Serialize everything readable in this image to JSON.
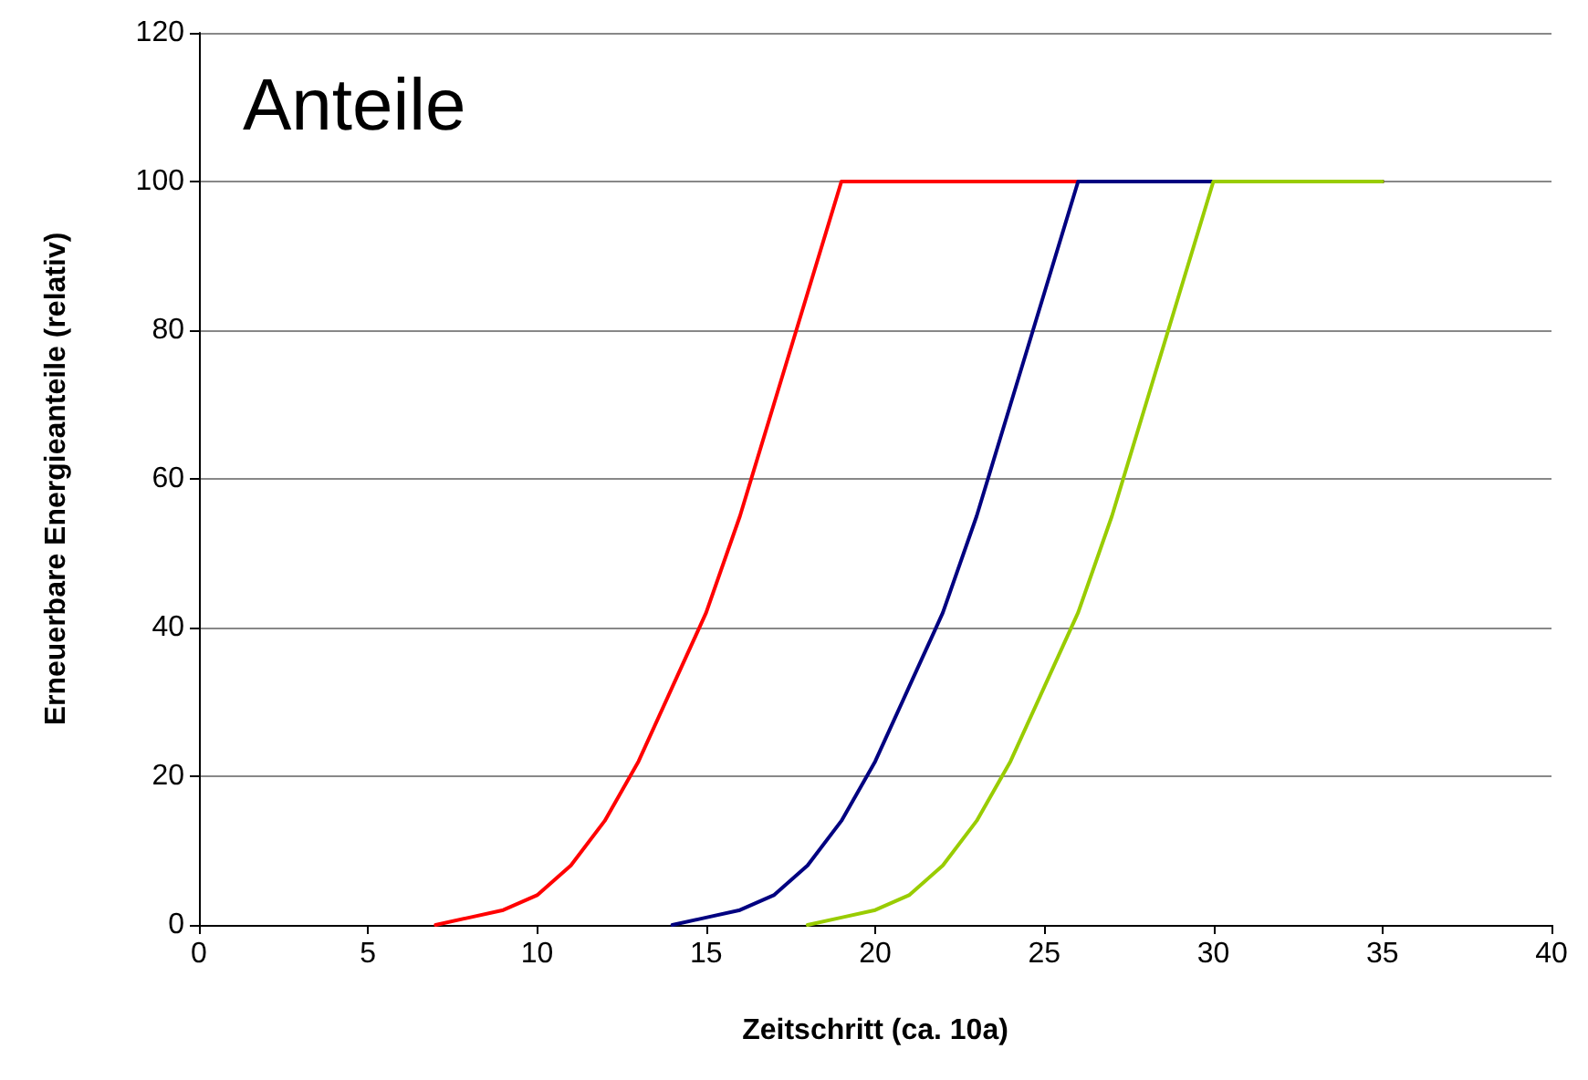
{
  "chart_data": {
    "type": "line",
    "title": "Anteile",
    "xlabel": "Zeitschritt (ca. 10a)",
    "ylabel": "Erneuerbare Energieanteile (relativ)",
    "xlim": [
      0,
      40
    ],
    "xticks": [
      0,
      5,
      10,
      15,
      20,
      25,
      30,
      35,
      40
    ],
    "ylim": [
      0,
      120
    ],
    "yticks": [
      0,
      20,
      40,
      60,
      80,
      100,
      120
    ],
    "grid": "y",
    "marker": "none",
    "line_style": "solid",
    "series": [
      {
        "color": "#ff0000",
        "x": [
          7,
          8,
          9,
          10,
          11,
          12,
          13,
          14,
          15,
          16,
          17,
          18,
          19,
          35
        ],
        "values": [
          0,
          1,
          2,
          4,
          8,
          14,
          22,
          32,
          42,
          55,
          70,
          85,
          100,
          100
        ]
      },
      {
        "color": "#000080",
        "x": [
          14,
          15,
          16,
          17,
          18,
          19,
          20,
          21,
          22,
          23,
          24,
          25,
          26,
          35
        ],
        "values": [
          0,
          1,
          2,
          4,
          8,
          14,
          22,
          32,
          42,
          55,
          70,
          85,
          100,
          100
        ]
      },
      {
        "color": "#99cc00",
        "x": [
          18,
          19,
          20,
          21,
          22,
          23,
          24,
          25,
          26,
          27,
          28,
          29,
          30,
          35
        ],
        "values": [
          0,
          1,
          2,
          4,
          8,
          14,
          22,
          32,
          42,
          55,
          70,
          85,
          100,
          100
        ]
      }
    ]
  }
}
